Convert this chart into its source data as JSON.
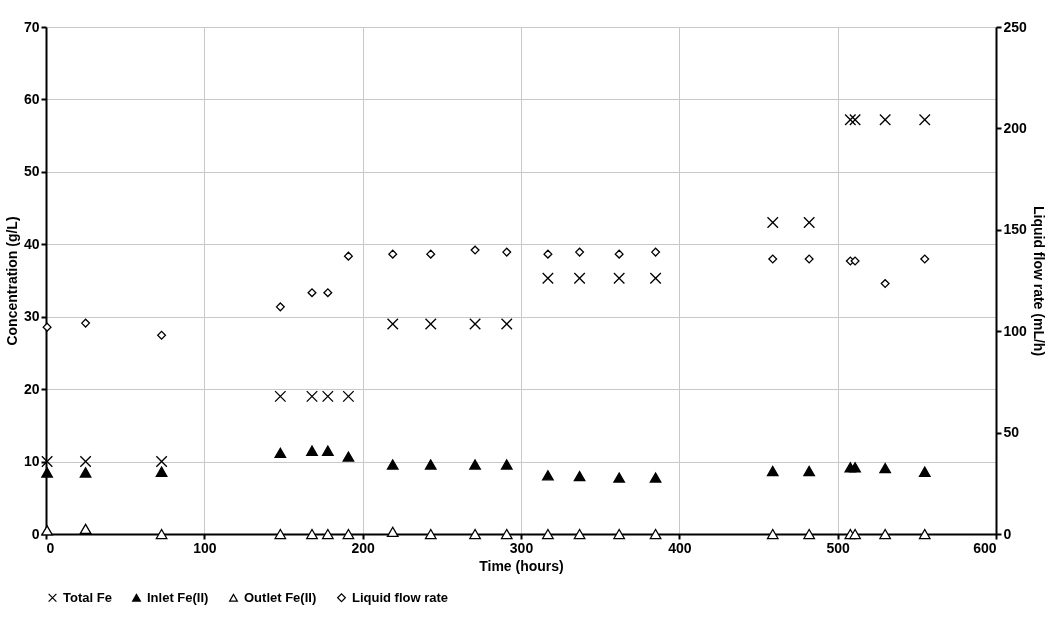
{
  "chart_data": {
    "type": "scatter",
    "xlabel": "Time (hours)",
    "ylabel": "Concentration (g/L)",
    "y2label": "Liquid flow rate (mL/h)",
    "xlim": [
      0,
      600
    ],
    "xticks": [
      0,
      100,
      200,
      300,
      400,
      500,
      600
    ],
    "ylim": [
      0,
      70
    ],
    "yticks": [
      0,
      10,
      20,
      30,
      40,
      50,
      60,
      70
    ],
    "y2lim": [
      0,
      250
    ],
    "y2ticks": [
      0,
      50,
      100,
      150,
      200,
      250
    ],
    "grid": true,
    "legend": "bottom",
    "series": [
      {
        "name": "Total Fe",
        "color": "#000000",
        "marker": "cross",
        "x": [
          0.7,
          25,
          73,
          148,
          168,
          178,
          191,
          219,
          243,
          271,
          291,
          317,
          337,
          362,
          385,
          459,
          482,
          508,
          511,
          530,
          555
        ],
        "values": [
          10,
          10,
          10,
          19,
          19,
          19,
          19,
          29,
          29,
          29,
          29,
          35.3,
          35.3,
          35.3,
          35.3,
          43,
          43,
          57.2,
          57.2,
          57.2,
          57.2
        ]
      },
      {
        "name": "Inlet Fe(II)",
        "color": "#000000",
        "marker": "triangle",
        "x": [
          0.7,
          25,
          73,
          148,
          168,
          178,
          191,
          219,
          243,
          271,
          291,
          317,
          337,
          362,
          385,
          459,
          482,
          508,
          511,
          530,
          555
        ],
        "values": [
          8.5,
          8.5,
          8.6,
          11.2,
          11.5,
          11.5,
          10.7,
          9.6,
          9.6,
          9.6,
          9.6,
          8.1,
          8,
          7.8,
          7.8,
          8.7,
          8.7,
          9.2,
          9.2,
          9.1,
          8.6
        ]
      },
      {
        "name": "Outlet Fe(II)",
        "color": "#ffffff",
        "marker": "triangle",
        "x": [
          0.7,
          25,
          73,
          148,
          168,
          178,
          191,
          219,
          243,
          271,
          291,
          317,
          337,
          362,
          385,
          459,
          482,
          508,
          511,
          530,
          555
        ],
        "values": [
          0.5,
          0.7,
          0,
          0,
          0,
          0,
          0,
          0.3,
          0,
          0,
          0,
          0,
          0,
          0,
          0,
          0,
          0,
          0,
          0,
          0,
          0
        ]
      },
      {
        "name": "Liquid flow rate",
        "color": "#ffffff",
        "marker": "diamond",
        "axis": "y2",
        "x": [
          0.7,
          25,
          73,
          148,
          168,
          178,
          191,
          219,
          243,
          271,
          291,
          317,
          337,
          362,
          385,
          459,
          482,
          508,
          511,
          530,
          555
        ],
        "values": [
          102,
          104,
          98,
          112,
          119,
          119,
          137,
          138,
          138,
          140,
          139,
          138,
          139,
          138,
          139,
          135.6,
          135.6,
          134.6,
          134.6,
          123.5,
          135.6
        ]
      }
    ]
  }
}
